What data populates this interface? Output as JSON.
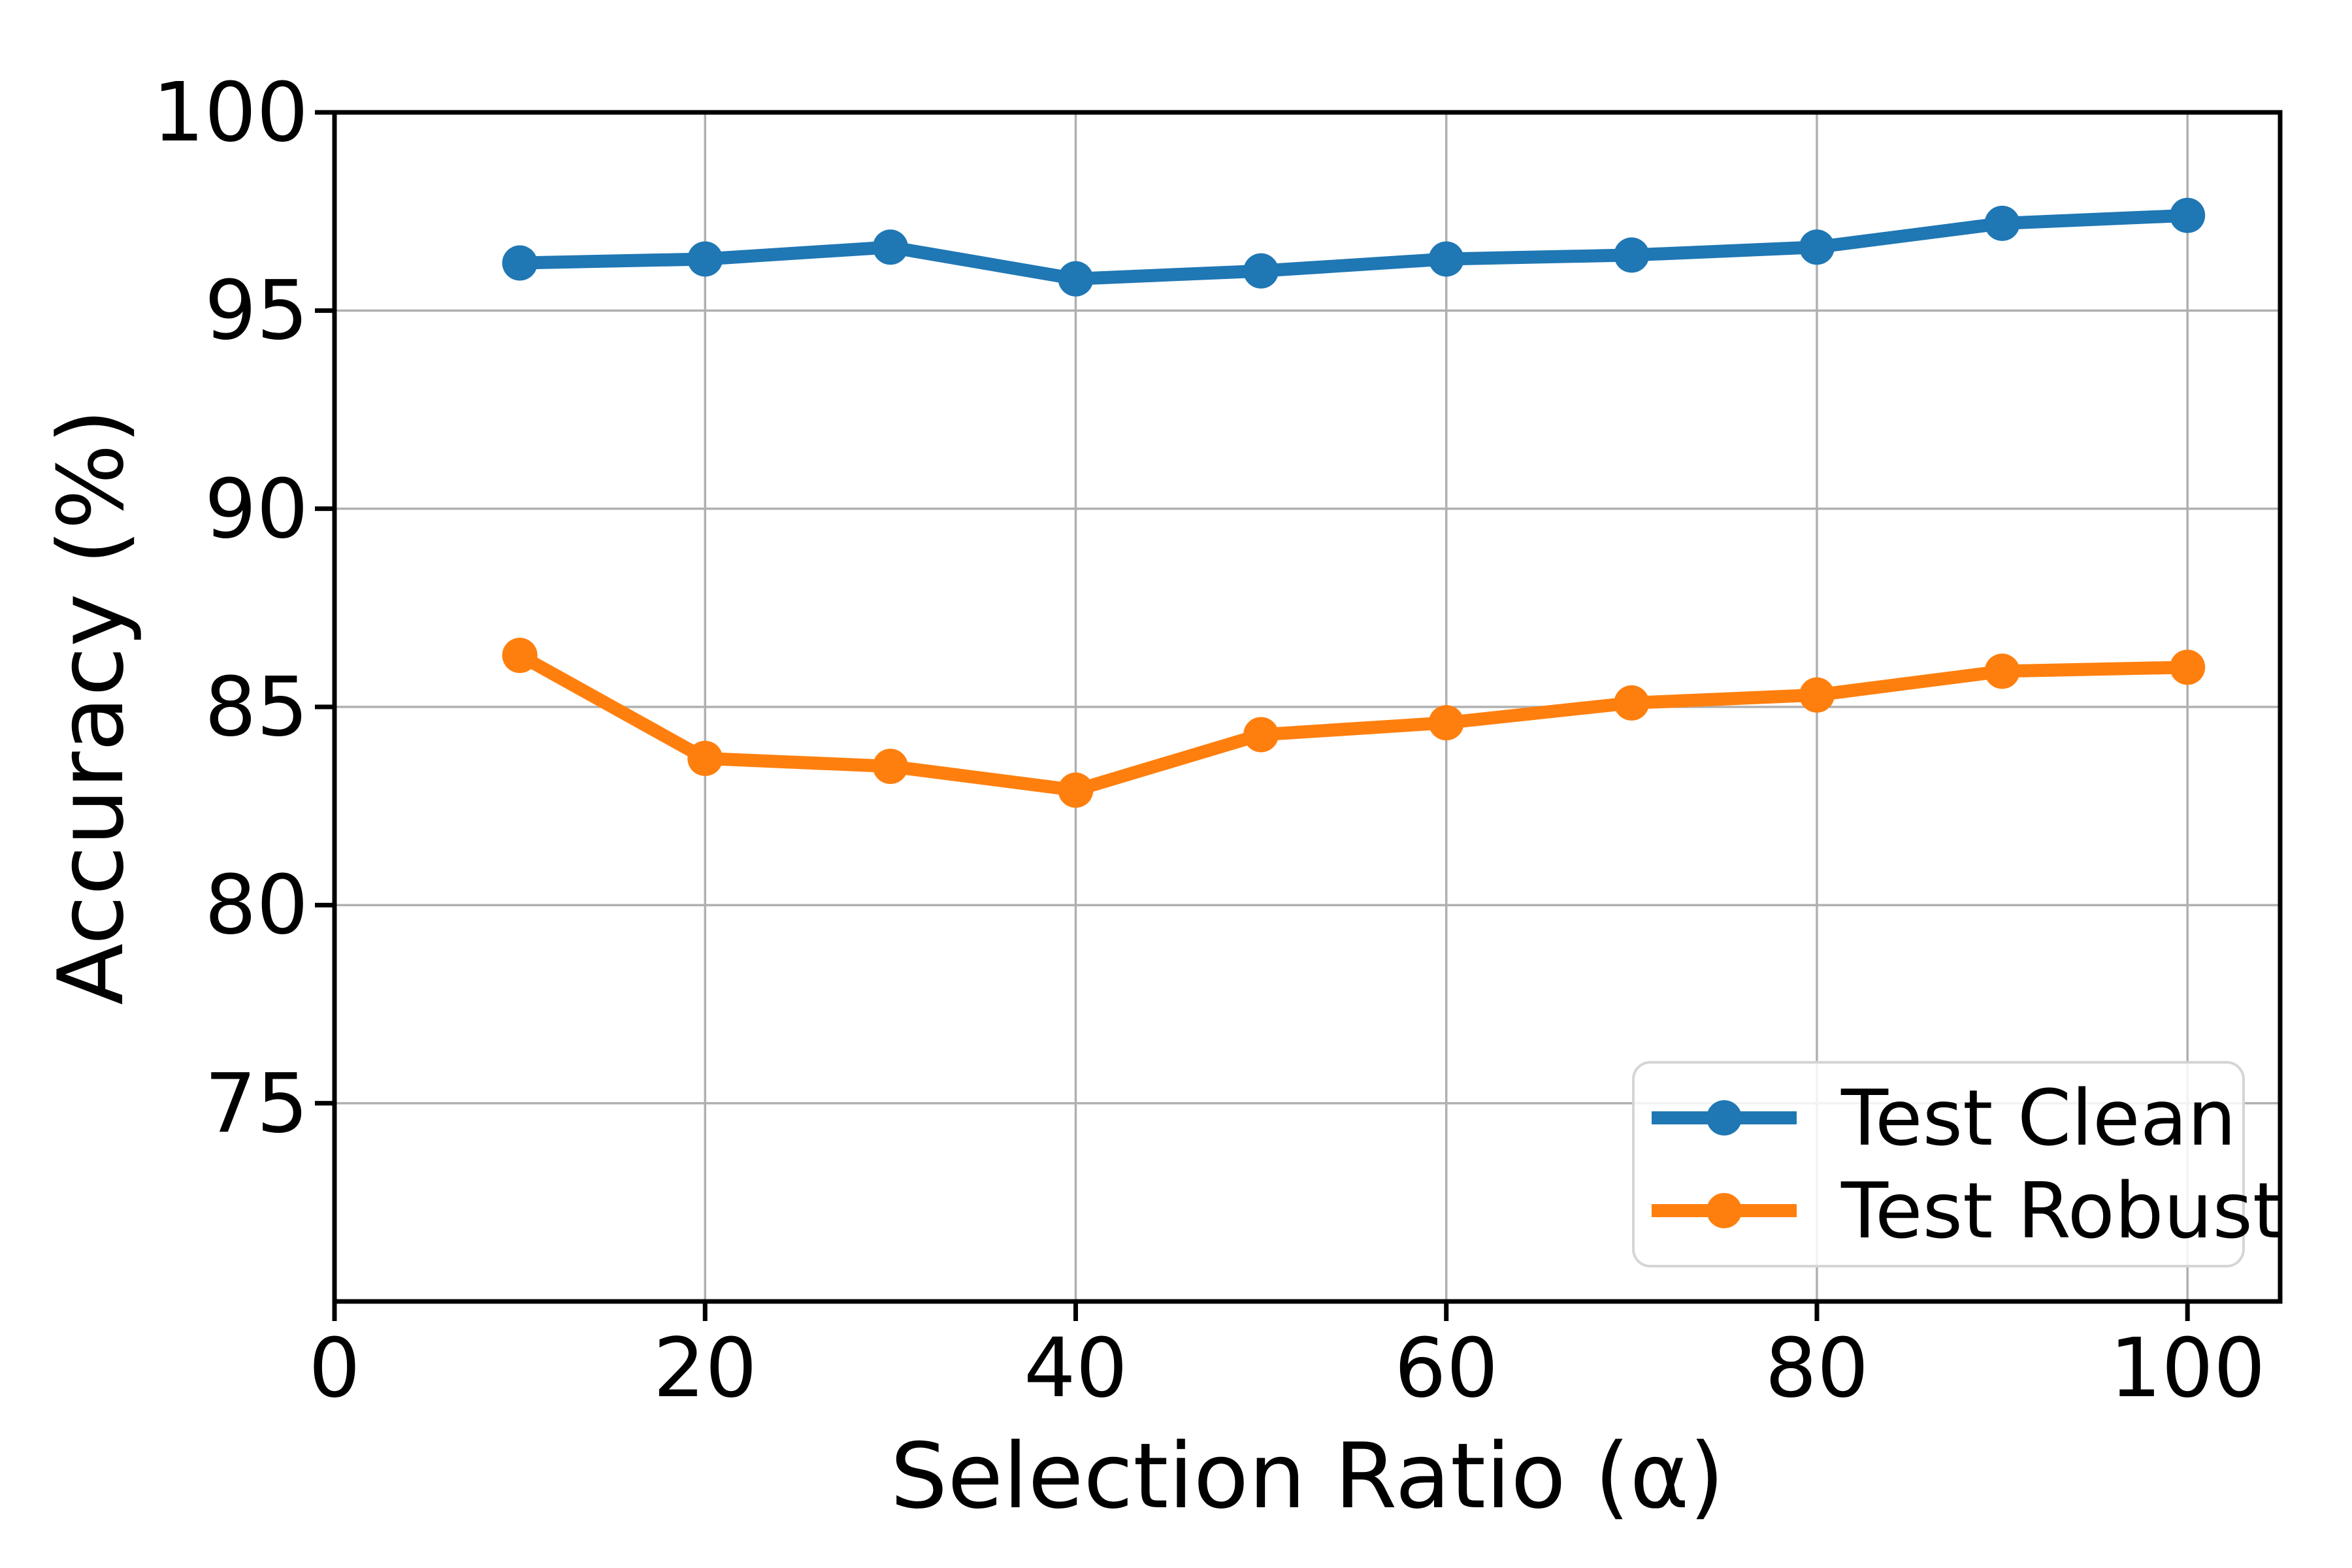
{
  "chart_data": {
    "type": "line",
    "title": "",
    "xlabel": "Selection Ratio (α)",
    "ylabel": "Accuracy (%)",
    "x": [
      10,
      20,
      30,
      40,
      50,
      60,
      70,
      80,
      90,
      100
    ],
    "series": [
      {
        "name": "Test Clean",
        "color": "#1f77b4",
        "marker": "circle",
        "values": [
          96.2,
          96.3,
          96.6,
          95.8,
          96.0,
          96.3,
          96.4,
          96.6,
          97.2,
          97.4
        ]
      },
      {
        "name": "Test Robust",
        "color": "#ff7f0e",
        "marker": "circle",
        "values": [
          86.3,
          83.7,
          83.5,
          82.9,
          84.3,
          84.6,
          85.1,
          85.3,
          85.9,
          86.0
        ]
      }
    ],
    "xlim": [
      0,
      105
    ],
    "ylim": [
      70,
      100
    ],
    "x_ticks": [
      0,
      20,
      40,
      60,
      80,
      100
    ],
    "y_ticks": [
      75,
      80,
      85,
      90,
      95,
      100
    ],
    "grid": true,
    "grid_color": "#b0b0b0",
    "spine_color": "#000000",
    "text_color": "#000000",
    "legend_position": "lower right"
  }
}
